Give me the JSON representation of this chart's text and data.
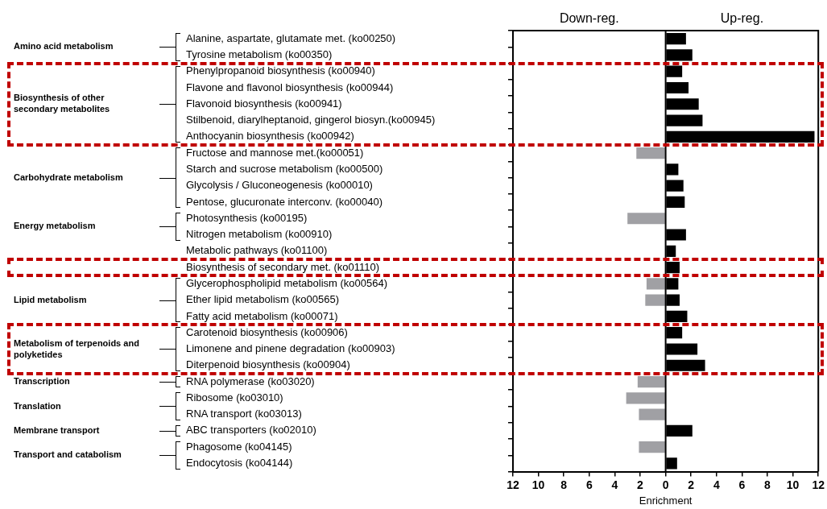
{
  "chart_data": {
    "type": "bar",
    "orientation": "horizontal",
    "xlabel": "Enrichment",
    "categories": [
      "Alanine, aspartate, glutamate met. (ko00250)",
      "Tyrosine metabolism (ko00350)",
      "Phenylpropanoid biosynthesis (ko00940)",
      "Flavone and flavonol biosynthesis (ko00944)",
      "Flavonoid biosynthesis (ko00941)",
      "Stilbenoid, diarylheptanoid, gingerol biosyn.(ko00945)",
      "Anthocyanin biosynthesis (ko00942)",
      "Fructose and mannose met.(ko00051)",
      "Starch and sucrose metabolism (ko00500)",
      "Glycolysis / Gluconeogenesis (ko00010)",
      "Pentose, glucuronate interconv. (ko00040)",
      "Photosynthesis (ko00195)",
      "Nitrogen metabolism (ko00910)",
      "Metabolic pathways (ko01100)",
      "Biosynthesis of secondary met. (ko01110)",
      "Glycerophospholipid metabolism (ko00564)",
      "Ether lipid metabolism (ko00565)",
      "Fatty acid metabolism (ko00071)",
      "Carotenoid biosynthesis (ko00906)",
      "Limonene and pinene degradation (ko00903)",
      "Diterpenoid biosynthesis (ko00904)",
      "RNA polymerase (ko03020)",
      "Ribosome (ko03010)",
      "RNA transport (ko03013)",
      "ABC transporters (ko02010)",
      "Phagosome (ko04145)",
      "Endocytosis (ko04144)"
    ],
    "series": [
      {
        "color": "#000000",
        "values": [
          1.6,
          2.1,
          1.3,
          1.8,
          2.6,
          2.9,
          11.7,
          null,
          1.0,
          1.4,
          1.5,
          null,
          1.6,
          0.8,
          1.1,
          1.0,
          1.1,
          1.7,
          1.3,
          2.5,
          3.1,
          null,
          null,
          null,
          2.1,
          null,
          0.9
        ]
      },
      {
        "color": "#a0a0a4",
        "values": [
          null,
          null,
          null,
          null,
          null,
          null,
          null,
          -2.3,
          null,
          null,
          null,
          -3.0,
          null,
          null,
          null,
          -1.5,
          -1.6,
          null,
          null,
          null,
          null,
          -2.2,
          -3.1,
          -2.1,
          null,
          -2.1,
          null
        ]
      }
    ],
    "xlim": [
      -12,
      12
    ],
    "xticks": [
      {
        "value": -12,
        "label": "12"
      },
      {
        "value": -10,
        "label": "10"
      },
      {
        "value": -8,
        "label": "8"
      },
      {
        "value": -6,
        "label": "6"
      },
      {
        "value": -4,
        "label": "4"
      },
      {
        "value": -2,
        "label": "2"
      },
      0,
      2,
      4,
      6,
      8,
      10,
      12
    ],
    "ref_lines": [
      {
        "axis": "x",
        "value": 0
      }
    ],
    "annotations": [
      "Down-reg.",
      "Up-reg.",
      "Amino acid metabolism",
      "Biosynthesis of other secondary metabolites",
      "Carbohydrate metabolism",
      "Energy metabolism",
      "Lipid metabolism",
      "Metabolism of terpenoids and polyketides",
      "Transcription",
      "Translation",
      "Membrane transport",
      "Transport and catabolism"
    ]
  }
}
